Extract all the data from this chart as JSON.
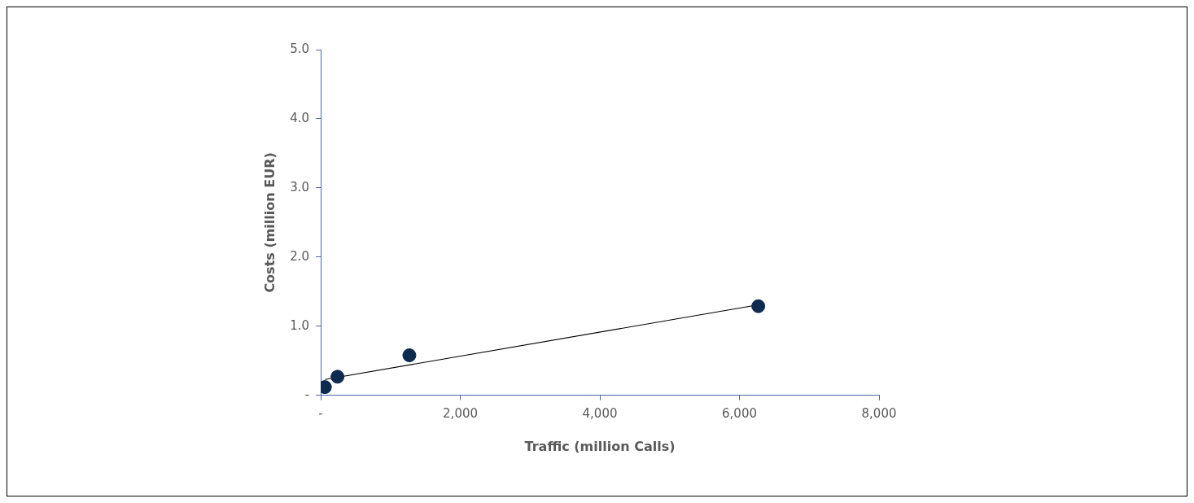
{
  "chart_data": {
    "type": "scatter",
    "xlabel": "Traffic (million Calls)",
    "ylabel": "Costs (million EUR)",
    "xlim": [
      0,
      8000
    ],
    "xticks": [
      {
        "value": 0,
        "label": "-"
      },
      {
        "value": 2000,
        "label": "2,000"
      },
      {
        "value": 4000,
        "label": "4,000"
      },
      {
        "value": 6000,
        "label": "6,000"
      },
      {
        "value": 8000,
        "label": "8,000"
      }
    ],
    "ylim": [
      0,
      5
    ],
    "yticks": [
      {
        "value": 0,
        "label": "-"
      },
      {
        "value": 1,
        "label": "1.0"
      },
      {
        "value": 2,
        "label": "2.0"
      },
      {
        "value": 3,
        "label": "3.0"
      },
      {
        "value": 4,
        "label": "4.0"
      },
      {
        "value": 5,
        "label": "5.0"
      }
    ],
    "legend": false,
    "series": [
      {
        "marker": "circle",
        "color": "#0d2a4f",
        "x": [
          60,
          240,
          1270,
          6270
        ],
        "values": [
          0.12,
          0.27,
          0.58,
          1.29
        ]
      },
      {
        "type": "line",
        "marker": "none",
        "color": "#000000",
        "x": [
          60,
          6270
        ],
        "values": [
          0.23,
          1.31
        ]
      }
    ]
  }
}
